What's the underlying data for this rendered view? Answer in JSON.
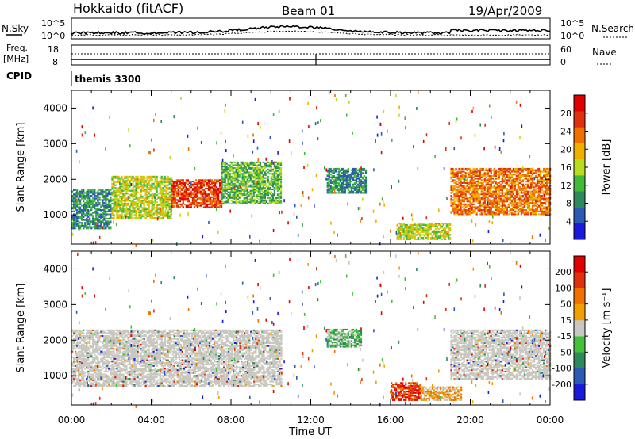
{
  "header": {
    "station": "Hokkaido (fitACF)",
    "beam": "Beam 01",
    "date": "19/Apr/2009"
  },
  "summary_panels": {
    "nsky_label": "N.Sky",
    "nsky_ticks": [
      "10^5",
      "10^0"
    ],
    "nsearch_label": "N.Search",
    "nsearch_ticks": [
      "10^5",
      "10^0"
    ],
    "freq_label_1": "Freq.",
    "freq_label_2": "[MHz]",
    "freq_ticks": [
      "18",
      "8"
    ],
    "nave_label": "Nave",
    "nave_ticks": [
      "60",
      "0"
    ],
    "cpid_label": "CPID",
    "cpid_value": "themis 3300"
  },
  "colors": {
    "power_scale": [
      "#1a1adc",
      "#2c5ab4",
      "#2e8a5a",
      "#44b83a",
      "#b8dc1e",
      "#f0b000",
      "#f07000",
      "#e03010",
      "#e00000"
    ],
    "velocity_scale": [
      "#1a1adc",
      "#2c5ab4",
      "#2e8a5a",
      "#44c03a",
      "#c8c8c0",
      "#f0a000",
      "#f07000",
      "#e03010",
      "#e00000"
    ],
    "ground_scatter": "#c0c0b8"
  },
  "chart_data": [
    {
      "type": "heatmap",
      "title": "Power",
      "ylabel": "Slant Range [km]",
      "xlabel": "",
      "x_ticks": [
        "00:00",
        "04:00",
        "08:00",
        "12:00",
        "16:00",
        "20:00",
        "00:00"
      ],
      "y_ticks": [
        "1000",
        "2000",
        "3000",
        "4000"
      ],
      "xlim_hours": [
        0,
        24
      ],
      "ylim_km": [
        180,
        4500
      ],
      "colorbar_label": "Power [dB]",
      "colorbar_ticks": [
        "28",
        "24",
        "20",
        "16",
        "12",
        "8",
        "4"
      ],
      "regions": [
        {
          "t0": 0.0,
          "t1": 2.0,
          "r0": 600,
          "r1": 1700,
          "level": 2
        },
        {
          "t0": 2.0,
          "t1": 5.0,
          "r0": 900,
          "r1": 2100,
          "level": 4
        },
        {
          "t0": 5.0,
          "t1": 7.5,
          "r0": 1200,
          "r1": 2000,
          "level": 7
        },
        {
          "t0": 7.5,
          "t1": 10.5,
          "r0": 1300,
          "r1": 2500,
          "level": 3
        },
        {
          "t0": 12.8,
          "t1": 14.8,
          "r0": 1600,
          "r1": 2300,
          "level": 2
        },
        {
          "t0": 16.3,
          "t1": 19.0,
          "r0": 300,
          "r1": 750,
          "level": 4
        },
        {
          "t0": 19.0,
          "t1": 24.0,
          "r0": 1000,
          "r1": 2300,
          "level": 6
        }
      ]
    },
    {
      "type": "heatmap",
      "title": "Velocity",
      "ylabel": "Slant Range [km]",
      "xlabel": "Time UT",
      "x_ticks": [
        "00:00",
        "04:00",
        "08:00",
        "12:00",
        "16:00",
        "20:00",
        "00:00"
      ],
      "y_ticks": [
        "1000",
        "2000",
        "3000",
        "4000"
      ],
      "xlim_hours": [
        0,
        24
      ],
      "ylim_km": [
        180,
        4500
      ],
      "colorbar_label": "Velocity [m s⁻¹]",
      "colorbar_ticks": [
        "200",
        "100",
        "50",
        "15",
        "-15",
        "-50",
        "-100",
        "-200"
      ],
      "regions": [
        {
          "t0": 0.0,
          "t1": 10.5,
          "r0": 700,
          "r1": 2300,
          "level": 4
        },
        {
          "t0": 12.8,
          "t1": 14.5,
          "r0": 1800,
          "r1": 2300,
          "level": 3
        },
        {
          "t0": 16.0,
          "t1": 17.5,
          "r0": 300,
          "r1": 800,
          "level": 7
        },
        {
          "t0": 17.5,
          "t1": 19.5,
          "r0": 300,
          "r1": 700,
          "level": 5
        },
        {
          "t0": 19.0,
          "t1": 24.0,
          "r0": 900,
          "r1": 2300,
          "level": 4
        }
      ]
    }
  ]
}
